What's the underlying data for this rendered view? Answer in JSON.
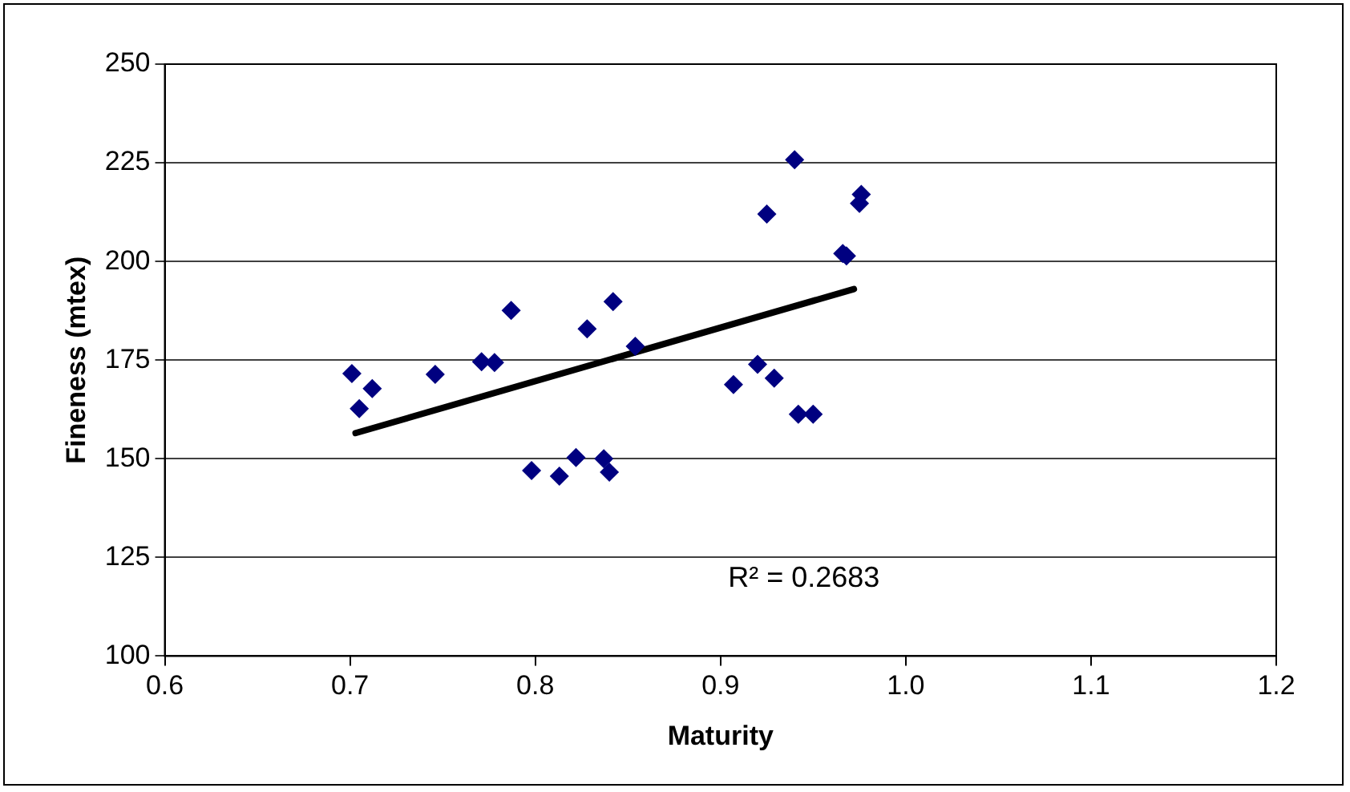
{
  "chart_data": {
    "type": "scatter",
    "xlabel": "Maturity",
    "ylabel": "Fineness (mtex)",
    "series": [
      {
        "color": "#000080",
        "marker": "diamond",
        "x": [
          0.701,
          0.712,
          0.705,
          0.746,
          0.771,
          0.778,
          0.787,
          0.798,
          0.813,
          0.822,
          0.828,
          0.837,
          0.84,
          0.842,
          0.854,
          0.907,
          0.94,
          0.925,
          0.976,
          0.975,
          0.968,
          0.966,
          0.92,
          0.929,
          0.942,
          0.95
        ],
        "values": [
          171.6,
          167.8,
          162.7,
          171.4,
          174.6,
          174.4,
          187.6,
          147,
          145.6,
          150.3,
          182.9,
          150,
          146.6,
          189.8,
          178.5,
          168.8,
          225.8,
          212,
          217,
          214.7,
          201.4,
          202,
          173.9,
          170.4,
          161.3,
          161.3
        ]
      },
      {
        "type": "line",
        "color": "#000000",
        "marker": "none",
        "x": [
          0.703,
          0.972
        ],
        "values": [
          156.5,
          193
        ]
      }
    ],
    "xlim": [
      0.6,
      1.2
    ],
    "xticks": [
      {
        "value": 0.6,
        "label": "0.6"
      },
      {
        "value": 0.7,
        "label": "0.7"
      },
      {
        "value": 0.8,
        "label": "0.8"
      },
      {
        "value": 0.9,
        "label": "0.9"
      },
      {
        "value": 1.0,
        "label": "1.0"
      },
      {
        "value": 1.1,
        "label": "1.1"
      },
      {
        "value": 1.2,
        "label": "1.2"
      }
    ],
    "ylim": [
      100,
      250
    ],
    "yticks": [
      100,
      125,
      150,
      175,
      200,
      225,
      250
    ],
    "grid": "y",
    "legend": false,
    "annotations": [
      "R² = 0.2683"
    ]
  }
}
